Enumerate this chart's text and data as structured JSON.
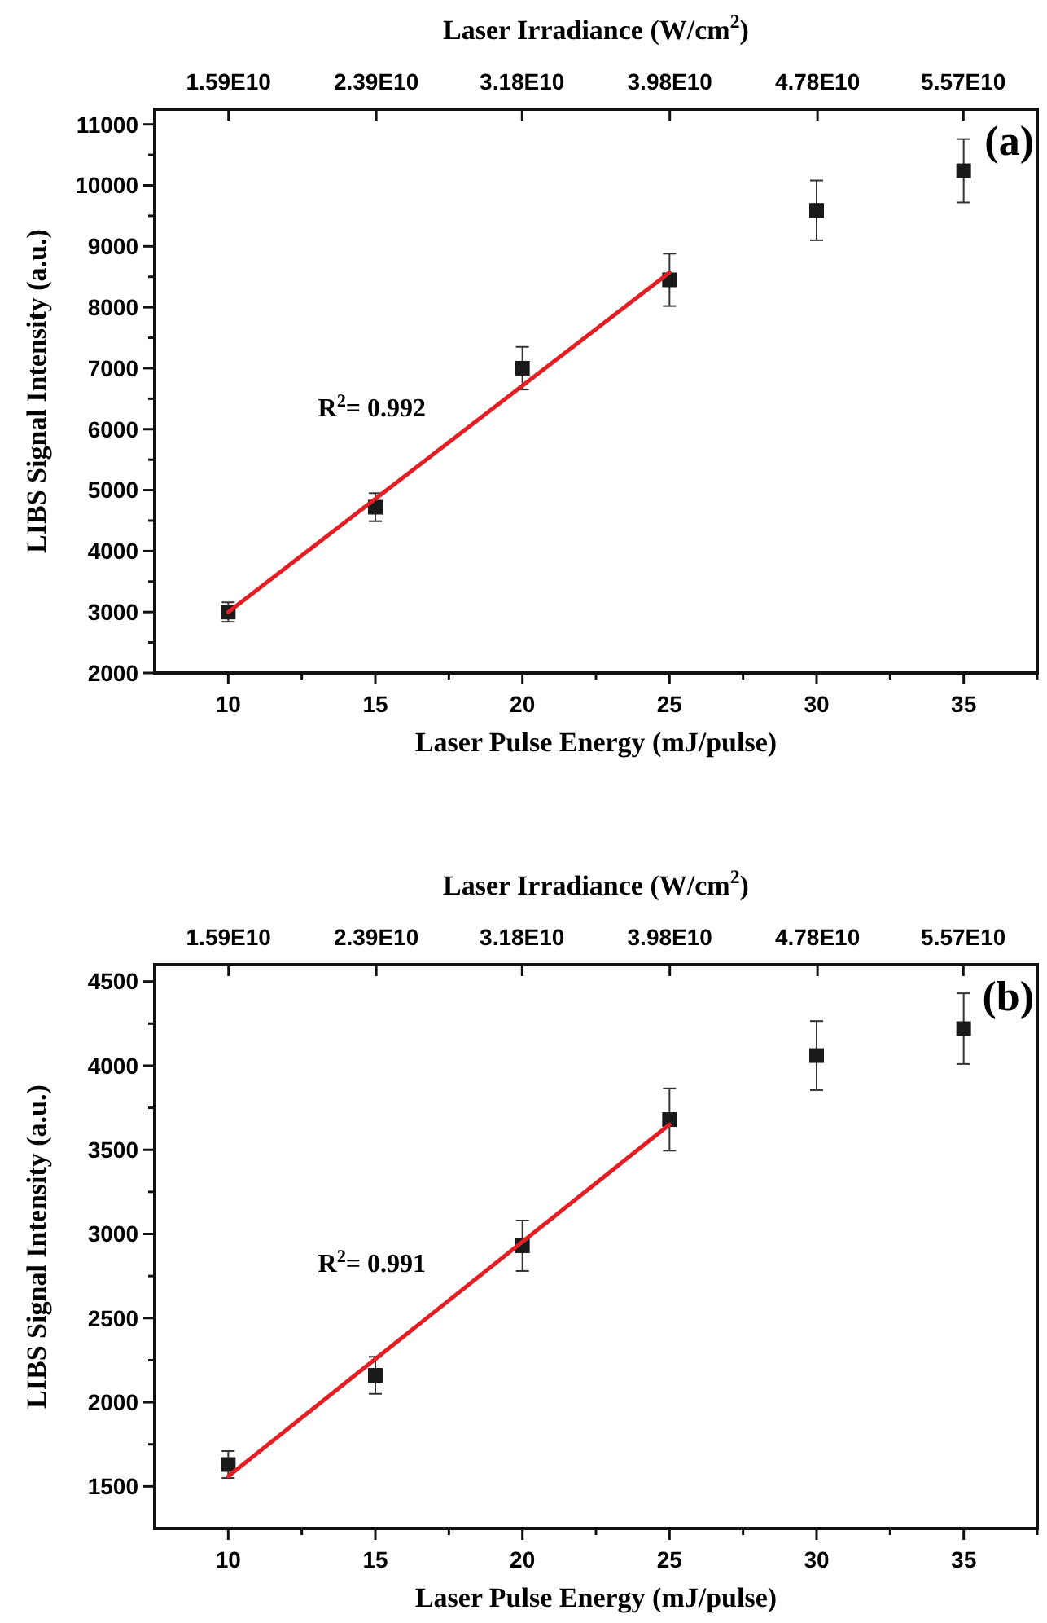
{
  "chart_data": [
    {
      "type": "scatter",
      "xlabel": "Laser Pulse Energy (mJ/pulse)",
      "x2label": "Laser Irradiance (W/cm$^{2}$)",
      "ylabel": "LIBS Signal Intensity (a.u.)",
      "xlim": [
        7.5,
        37.5
      ],
      "xticks": [
        10,
        {
          "value": 12.5,
          "label": null
        },
        15,
        {
          "value": 17.5,
          "label": null
        },
        20,
        {
          "value": 22.5,
          "label": null
        },
        25,
        {
          "value": 27.5,
          "label": null
        },
        30,
        {
          "value": 32.5,
          "label": null
        },
        35,
        {
          "value": 37.5,
          "label": null
        }
      ],
      "x2lim": [
        11900000000.0,
        59700000000.0
      ],
      "x2ticks": [
        {
          "value": 15900000000.0,
          "label": "1.59E10"
        },
        {
          "value": 23900000000.0,
          "label": "2.39E10"
        },
        {
          "value": 31800000000.0,
          "label": "3.18E10"
        },
        {
          "value": 39800000000.0,
          "label": "3.98E10"
        },
        {
          "value": 47800000000.0,
          "label": "4.78E10"
        },
        {
          "value": 55700000000.0,
          "label": "5.57E10"
        }
      ],
      "ylim": [
        2000,
        11250
      ],
      "yticks": [
        2000,
        {
          "value": 2500,
          "label": null
        },
        3000,
        {
          "value": 3500,
          "label": null
        },
        4000,
        {
          "value": 4500,
          "label": null
        },
        5000,
        {
          "value": 5500,
          "label": null
        },
        6000,
        {
          "value": 6500,
          "label": null
        },
        7000,
        {
          "value": 7500,
          "label": null
        },
        8000,
        {
          "value": 8500,
          "label": null
        },
        9000,
        {
          "value": 9500,
          "label": null
        },
        10000,
        {
          "value": 10500,
          "label": null
        },
        11000
      ],
      "marker": "square",
      "grid": false,
      "series": [
        {
          "color": "#1a1a1a",
          "x": [
            10,
            15,
            20,
            25,
            30,
            35
          ],
          "values": [
            3000,
            4720,
            7000,
            8450,
            9590,
            10240
          ],
          "errors": [
            160,
            230,
            350,
            430,
            490,
            520
          ]
        },
        {
          "type": "line",
          "color": "#e31e24",
          "marker": "none",
          "x": [
            10,
            25
          ],
          "values": [
            3000,
            8570
          ]
        }
      ],
      "annotations": [
        "(a)",
        "R$^{2}$= 0.992"
      ]
    },
    {
      "type": "scatter",
      "xlabel": "Laser Pulse Energy (mJ/pulse)",
      "x2label": "Laser Irradiance (W/cm$^{2}$)",
      "ylabel": "LIBS Signal Intensity (a.u.)",
      "xlim": [
        7.5,
        37.5
      ],
      "xticks": [
        10,
        {
          "value": 12.5,
          "label": null
        },
        15,
        {
          "value": 17.5,
          "label": null
        },
        20,
        {
          "value": 22.5,
          "label": null
        },
        25,
        {
          "value": 27.5,
          "label": null
        },
        30,
        {
          "value": 32.5,
          "label": null
        },
        35,
        {
          "value": 37.5,
          "label": null
        }
      ],
      "x2lim": [
        11900000000.0,
        59700000000.0
      ],
      "x2ticks": [
        {
          "value": 15900000000.0,
          "label": "1.59E10"
        },
        {
          "value": 23900000000.0,
          "label": "2.39E10"
        },
        {
          "value": 31800000000.0,
          "label": "3.18E10"
        },
        {
          "value": 39800000000.0,
          "label": "3.98E10"
        },
        {
          "value": 47800000000.0,
          "label": "4.78E10"
        },
        {
          "value": 55700000000.0,
          "label": "5.57E10"
        }
      ],
      "ylim": [
        1250,
        4600
      ],
      "yticks": [
        1500,
        {
          "value": 1750,
          "label": null
        },
        2000,
        {
          "value": 2250,
          "label": null
        },
        2500,
        {
          "value": 2750,
          "label": null
        },
        3000,
        {
          "value": 3250,
          "label": null
        },
        3500,
        {
          "value": 3750,
          "label": null
        },
        4000,
        {
          "value": 4250,
          "label": null
        },
        4500
      ],
      "marker": "square",
      "grid": false,
      "series": [
        {
          "color": "#1a1a1a",
          "x": [
            10,
            15,
            20,
            25,
            30,
            35
          ],
          "values": [
            1630,
            2160,
            2930,
            3680,
            4060,
            4220
          ],
          "errors": [
            80,
            110,
            150,
            185,
            205,
            210
          ]
        },
        {
          "type": "line",
          "color": "#e31e24",
          "marker": "none",
          "x": [
            10,
            25
          ],
          "values": [
            1560,
            3650
          ]
        }
      ],
      "annotations": [
        "(b)",
        "R$^{2}$= 0.991"
      ]
    }
  ]
}
